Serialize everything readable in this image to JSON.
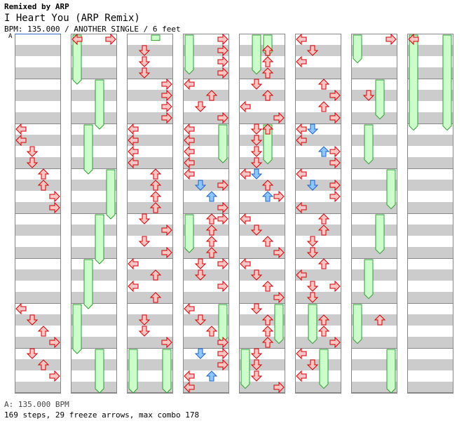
{
  "header": {
    "remix": "Remixed by ARP",
    "song": "I Heart You (ARP Remix)",
    "info": "BPM: 135.000 / ANOTHER SINGLE / 6 feet",
    "bpm_marker": "A"
  },
  "footer": {
    "bpm_change": "A: 135.000 BPM",
    "stats": "169 steps, 29 freeze arrows, max combo 178"
  },
  "colors": {
    "arrow_red": "#ffc4c4",
    "arrow_red_stroke": "#cc0000",
    "arrow_blue": "#8ec6ff",
    "arrow_blue_stroke": "#2060c0",
    "freeze": "#ccffcc",
    "freeze_stroke": "#339933",
    "stripe": "#cccccc"
  },
  "chart_data": {
    "type": "step_chart",
    "columns": 8,
    "lanes": [
      "left",
      "down",
      "up",
      "right"
    ],
    "beats_per_column": 16,
    "measures_per_column": 4,
    "columns_data": [
      {
        "notes": [
          {
            "l": 0,
            "b": 8
          },
          {
            "l": 0,
            "b": 9
          },
          {
            "l": 1,
            "b": 10
          },
          {
            "l": 1,
            "b": 11
          },
          {
            "l": 2,
            "b": 12
          },
          {
            "l": 2,
            "b": 13
          },
          {
            "l": 3,
            "b": 14
          },
          {
            "l": 3,
            "b": 15
          },
          {
            "l": 0,
            "b": 24
          },
          {
            "l": 1,
            "b": 25
          },
          {
            "l": 2,
            "b": 26
          },
          {
            "l": 3,
            "b": 27
          },
          {
            "l": 1,
            "b": 28
          },
          {
            "l": 2,
            "b": 29
          },
          {
            "l": 3,
            "b": 30
          }
        ],
        "freezes": []
      },
      {
        "notes": [
          {
            "l": 0,
            "b": 0
          },
          {
            "l": 3,
            "b": 0
          }
        ],
        "freezes": [
          {
            "l": 0,
            "s": 0,
            "e": 4.5
          },
          {
            "l": 2,
            "s": 4,
            "e": 8.5
          },
          {
            "l": 1,
            "s": 8,
            "e": 12.5
          },
          {
            "l": 3,
            "s": 12,
            "e": 16.5
          },
          {
            "l": 2,
            "s": 16,
            "e": 20.5
          },
          {
            "l": 1,
            "s": 20,
            "e": 24.5
          },
          {
            "l": 0,
            "s": 24,
            "e": 28.5
          },
          {
            "l": 2,
            "s": 28,
            "e": 32
          }
        ]
      },
      {
        "notes": [
          {
            "l": 1,
            "b": 1
          },
          {
            "l": 1,
            "b": 2
          },
          {
            "l": 1,
            "b": 3
          },
          {
            "l": 3,
            "b": 4
          },
          {
            "l": 3,
            "b": 5
          },
          {
            "l": 3,
            "b": 6
          },
          {
            "l": 3,
            "b": 7
          },
          {
            "l": 0,
            "b": 8
          },
          {
            "l": 0,
            "b": 9
          },
          {
            "l": 0,
            "b": 10
          },
          {
            "l": 0,
            "b": 11
          },
          {
            "l": 2,
            "b": 12
          },
          {
            "l": 2,
            "b": 13
          },
          {
            "l": 2,
            "b": 14
          },
          {
            "l": 2,
            "b": 15
          },
          {
            "l": 1,
            "b": 16
          },
          {
            "l": 3,
            "b": 17
          },
          {
            "l": 1,
            "b": 18
          },
          {
            "l": 3,
            "b": 19
          },
          {
            "l": 0,
            "b": 20
          },
          {
            "l": 2,
            "b": 21
          },
          {
            "l": 0,
            "b": 22
          },
          {
            "l": 2,
            "b": 23
          },
          {
            "l": 1,
            "b": 25
          },
          {
            "l": 1,
            "b": 26
          },
          {
            "l": 3,
            "b": 27
          }
        ],
        "freezes": [
          {
            "l": 2,
            "s": 0,
            "e": 0.6
          },
          {
            "l": 0,
            "s": 28,
            "e": 32
          },
          {
            "l": 3,
            "s": 28,
            "e": 32
          }
        ]
      },
      {
        "notes": [
          {
            "l": 3,
            "b": 0
          },
          {
            "l": 3,
            "b": 1
          },
          {
            "l": 3,
            "b": 2
          },
          {
            "l": 3,
            "b": 3
          },
          {
            "l": 0,
            "b": 4
          },
          {
            "l": 2,
            "b": 5
          },
          {
            "l": 1,
            "b": 6
          },
          {
            "l": 3,
            "b": 7
          },
          {
            "l": 0,
            "b": 8
          },
          {
            "l": 0,
            "b": 9
          },
          {
            "l": 0,
            "b": 10
          },
          {
            "l": 0,
            "b": 11
          },
          {
            "l": 0,
            "b": 12
          },
          {
            "l": 1,
            "b": 13,
            "c": "blue"
          },
          {
            "l": 3,
            "b": 13
          },
          {
            "l": 2,
            "b": 14,
            "c": "blue"
          },
          {
            "l": 3,
            "b": 15
          },
          {
            "l": 2,
            "b": 16
          },
          {
            "l": 3,
            "b": 16
          },
          {
            "l": 2,
            "b": 17
          },
          {
            "l": 2,
            "b": 18
          },
          {
            "l": 2,
            "b": 19
          },
          {
            "l": 1,
            "b": 20
          },
          {
            "l": 3,
            "b": 20
          },
          {
            "l": 1,
            "b": 21
          },
          {
            "l": 3,
            "b": 22
          },
          {
            "l": 0,
            "b": 24
          },
          {
            "l": 1,
            "b": 25
          },
          {
            "l": 2,
            "b": 26
          },
          {
            "l": 3,
            "b": 27
          },
          {
            "l": 1,
            "b": 28,
            "c": "blue"
          },
          {
            "l": 3,
            "b": 28
          },
          {
            "l": 3,
            "b": 29
          },
          {
            "l": 0,
            "b": 30
          },
          {
            "l": 2,
            "b": 30,
            "c": "blue"
          },
          {
            "l": 0,
            "b": 31
          }
        ],
        "freezes": [
          {
            "l": 0,
            "s": 0,
            "e": 3.6
          },
          {
            "l": 3,
            "s": 8,
            "e": 11.5
          },
          {
            "l": 0,
            "s": 16,
            "e": 19.5
          },
          {
            "l": 3,
            "s": 24,
            "e": 27.5
          }
        ]
      },
      {
        "notes": [
          {
            "l": 2,
            "b": 1
          },
          {
            "l": 2,
            "b": 2
          },
          {
            "l": 2,
            "b": 3
          },
          {
            "l": 1,
            "b": 4
          },
          {
            "l": 2,
            "b": 5
          },
          {
            "l": 0,
            "b": 6
          },
          {
            "l": 3,
            "b": 7
          },
          {
            "l": 1,
            "b": 8
          },
          {
            "l": 2,
            "b": 8
          },
          {
            "l": 1,
            "b": 9
          },
          {
            "l": 1,
            "b": 10
          },
          {
            "l": 1,
            "b": 11
          },
          {
            "l": 0,
            "b": 12
          },
          {
            "l": 1,
            "b": 12,
            "c": "blue"
          },
          {
            "l": 2,
            "b": 13
          },
          {
            "l": 2,
            "b": 14,
            "c": "blue"
          },
          {
            "l": 3,
            "b": 14
          },
          {
            "l": 0,
            "b": 16
          },
          {
            "l": 1,
            "b": 17
          },
          {
            "l": 2,
            "b": 18
          },
          {
            "l": 3,
            "b": 19
          },
          {
            "l": 0,
            "b": 20
          },
          {
            "l": 1,
            "b": 21
          },
          {
            "l": 2,
            "b": 22
          },
          {
            "l": 3,
            "b": 23
          },
          {
            "l": 1,
            "b": 24
          },
          {
            "l": 2,
            "b": 25
          },
          {
            "l": 2,
            "b": 26
          },
          {
            "l": 2,
            "b": 27
          },
          {
            "l": 1,
            "b": 28
          },
          {
            "l": 1,
            "b": 29
          },
          {
            "l": 1,
            "b": 30
          },
          {
            "l": 3,
            "b": 31
          }
        ],
        "freezes": [
          {
            "l": 1,
            "s": 0,
            "e": 3.6
          },
          {
            "l": 2,
            "s": 0,
            "e": 2
          },
          {
            "l": 2,
            "s": 8,
            "e": 11.6
          },
          {
            "l": 3,
            "s": 24,
            "e": 27.6
          },
          {
            "l": 0,
            "s": 28,
            "e": 31.6
          }
        ]
      },
      {
        "notes": [
          {
            "l": 0,
            "b": 0
          },
          {
            "l": 1,
            "b": 1
          },
          {
            "l": 0,
            "b": 2
          },
          {
            "l": 2,
            "b": 4
          },
          {
            "l": 3,
            "b": 5
          },
          {
            "l": 2,
            "b": 6
          },
          {
            "l": 3,
            "b": 7
          },
          {
            "l": 0,
            "b": 8
          },
          {
            "l": 1,
            "b": 8,
            "c": "blue"
          },
          {
            "l": 0,
            "b": 9
          },
          {
            "l": 2,
            "b": 10,
            "c": "blue"
          },
          {
            "l": 3,
            "b": 10
          },
          {
            "l": 3,
            "b": 11
          },
          {
            "l": 0,
            "b": 12
          },
          {
            "l": 1,
            "b": 13,
            "c": "blue"
          },
          {
            "l": 3,
            "b": 13
          },
          {
            "l": 3,
            "b": 14
          },
          {
            "l": 0,
            "b": 15
          },
          {
            "l": 2,
            "b": 16
          },
          {
            "l": 2,
            "b": 17
          },
          {
            "l": 1,
            "b": 18
          },
          {
            "l": 1,
            "b": 19
          },
          {
            "l": 2,
            "b": 20
          },
          {
            "l": 0,
            "b": 21
          },
          {
            "l": 1,
            "b": 22
          },
          {
            "l": 3,
            "b": 22
          },
          {
            "l": 1,
            "b": 23
          },
          {
            "l": 2,
            "b": 25
          },
          {
            "l": 2,
            "b": 26
          },
          {
            "l": 3,
            "b": 27
          },
          {
            "l": 0,
            "b": 28
          },
          {
            "l": 1,
            "b": 29
          },
          {
            "l": 0,
            "b": 30
          }
        ],
        "freezes": [
          {
            "l": 1,
            "s": 24,
            "e": 27.6
          },
          {
            "l": 2,
            "s": 28,
            "e": 31.6
          }
        ]
      },
      {
        "notes": [
          {
            "l": 3,
            "b": 0
          },
          {
            "l": 1,
            "b": 5
          },
          {
            "l": 2,
            "b": 25
          }
        ],
        "freezes": [
          {
            "l": 0,
            "s": 0,
            "e": 2.6
          },
          {
            "l": 2,
            "s": 4,
            "e": 7.6
          },
          {
            "l": 1,
            "s": 8,
            "e": 11.6
          },
          {
            "l": 3,
            "s": 12,
            "e": 15.6
          },
          {
            "l": 2,
            "s": 16,
            "e": 19.6
          },
          {
            "l": 1,
            "s": 20,
            "e": 23.6
          },
          {
            "l": 0,
            "s": 24,
            "e": 27.6
          },
          {
            "l": 3,
            "s": 28,
            "e": 32
          }
        ]
      },
      {
        "notes": [
          {
            "l": 0,
            "b": 0
          }
        ],
        "freezes": [
          {
            "l": 0,
            "s": 0,
            "e": 8.6
          },
          {
            "l": 3,
            "s": 0,
            "e": 8.6
          }
        ]
      }
    ]
  }
}
